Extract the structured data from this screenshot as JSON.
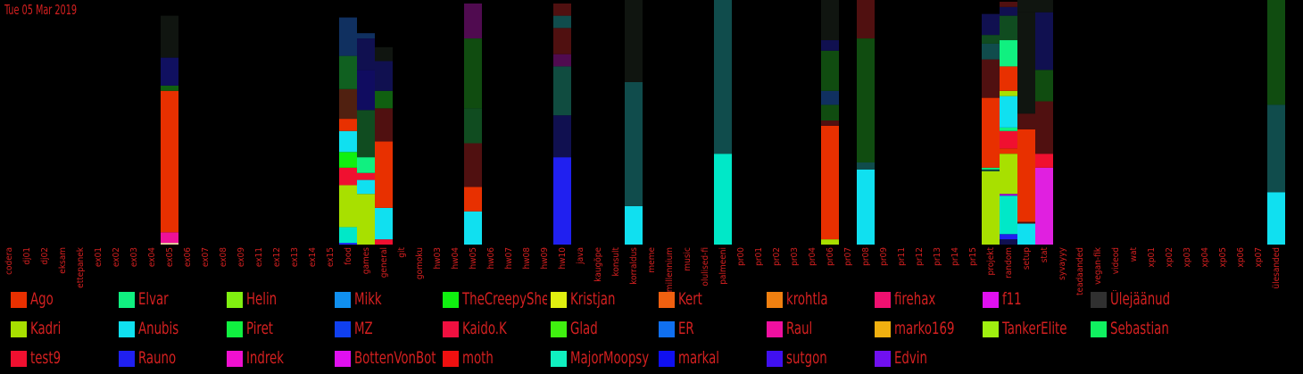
{
  "date": "Tue 05 Mar 2019",
  "chart_data": {
    "type": "bar",
    "stacked": true,
    "categories": [
      "codera",
      "dj01",
      "dj02",
      "eksam",
      "ettepanek",
      "ex01",
      "ex02",
      "ex03",
      "ex04",
      "ex05",
      "ex06",
      "ex07",
      "ex08",
      "ex09",
      "ex11",
      "ex12",
      "ex13",
      "ex14",
      "ex15",
      "food",
      "games",
      "general",
      "git",
      "gomoku",
      "hw03",
      "hw04",
      "hw05",
      "hw06",
      "hw07",
      "hw08",
      "hw09",
      "hw10",
      "java",
      "kaugõpe",
      "konsult",
      "korraldus",
      "meme",
      "millennium",
      "music",
      "olulised-fi",
      "palmeeni",
      "pr00",
      "pr01",
      "pr02",
      "pr03",
      "pr04",
      "pr06",
      "pr07",
      "pr08",
      "pr09",
      "pr11",
      "pr12",
      "pr13",
      "pr14",
      "pr15",
      "projekt",
      "random",
      "setup",
      "stat",
      "syvayyy",
      "teadaanded",
      "vegan-fik",
      "videod",
      "wat",
      "xp01",
      "xp02",
      "xp03",
      "xp04",
      "xp05",
      "xp06",
      "xp07",
      "ülesanded"
    ],
    "bars": {
      "ex05": [
        [
          "#e8d0a0",
          1
        ],
        [
          "#ee1199",
          6
        ],
        [
          "#e83000",
          81
        ],
        [
          "#106010",
          3
        ],
        [
          "#101060",
          16
        ],
        [
          "#101510",
          24
        ]
      ],
      "food": [
        [
          "#2030ff",
          1
        ],
        [
          "#00e8c8",
          9
        ],
        [
          "#a8e000",
          24
        ],
        [
          "#f01030",
          10
        ],
        [
          "#10f010",
          9
        ],
        [
          "#10e0f0",
          12
        ],
        [
          "#e83000",
          7
        ],
        [
          "#502010",
          17
        ],
        [
          "#106020",
          19
        ],
        [
          "#103060",
          22
        ]
      ],
      "games": [
        [
          "#a8e000",
          29
        ],
        [
          "#10e0f0",
          8
        ],
        [
          "#f01030",
          4
        ],
        [
          "#10f080",
          9
        ],
        [
          "#104c20",
          27
        ],
        [
          "#100c60",
          23
        ],
        [
          "#101050",
          18
        ],
        [
          "#103060",
          3
        ]
      ],
      "general": [
        [
          "#f01030",
          3
        ],
        [
          "#10e0f0",
          18
        ],
        [
          "#e83000",
          38
        ],
        [
          "#501010",
          19
        ],
        [
          "#106010",
          10
        ],
        [
          "#101050",
          17
        ],
        [
          "#101510",
          8
        ]
      ],
      "hw05": [
        [
          "#10e0f0",
          19
        ],
        [
          "#e83000",
          14
        ],
        [
          "#501010",
          25
        ],
        [
          "#104c20",
          20
        ],
        [
          "#104c10",
          40
        ],
        [
          "#500b50",
          20
        ]
      ],
      "hw10": [
        [
          "#2020f0",
          50
        ],
        [
          "#101050",
          24
        ],
        [
          "#104c40",
          28
        ],
        [
          "#500b50",
          7
        ],
        [
          "#501010",
          15
        ],
        [
          "#104c4c",
          7
        ],
        [
          "#501010",
          7
        ]
      ],
      "korraldus": [
        [
          "#10e0f0",
          22
        ],
        [
          "#104c4c",
          71
        ],
        [
          "#101510",
          47
        ]
      ],
      "palmeeni": [
        [
          "#00e8c8",
          52
        ],
        [
          "#104c4c",
          88
        ]
      ],
      "pr06": [
        [
          "#a8e000",
          3
        ],
        [
          "#e83000",
          65
        ],
        [
          "#501010",
          3
        ],
        [
          "#104c10",
          9
        ],
        [
          "#103060",
          8
        ],
        [
          "#104c10",
          23
        ],
        [
          "#101050",
          6
        ],
        [
          "#101510",
          28
        ]
      ],
      "pr08": [
        [
          "#10e0f0",
          43
        ],
        [
          "#104c4c",
          4
        ],
        [
          "#104c10",
          71
        ],
        [
          "#501010",
          22
        ]
      ],
      "random": [
        [
          "#101050",
          3
        ],
        [
          "#2020f0",
          3
        ],
        [
          "#00e8c8",
          22
        ],
        [
          "#a000e0",
          1
        ],
        [
          "#a8e000",
          23
        ],
        [
          "#e83000",
          3
        ],
        [
          "#f01030",
          10
        ],
        [
          "#10f080",
          2
        ],
        [
          "#10e0f0",
          18
        ],
        [
          "#a8e000",
          3
        ],
        [
          "#e83000",
          14
        ],
        [
          "#10f080",
          15
        ],
        [
          "#104c20",
          14
        ],
        [
          "#101050",
          5
        ],
        [
          "#501010",
          3
        ]
      ],
      "projekt": [
        [
          "#a8e000",
          42
        ],
        [
          "#104c40",
          1
        ],
        [
          "#10f080",
          1
        ],
        [
          "#e83000",
          40
        ],
        [
          "#501010",
          22
        ],
        [
          "#104c4c",
          9
        ],
        [
          "#104c20",
          5
        ],
        [
          "#101050",
          8
        ],
        [
          "#101050",
          4
        ]
      ],
      "setup": [
        [
          "#10e0f0",
          12
        ],
        [
          "#501010",
          1
        ],
        [
          "#e83000",
          53
        ],
        [
          "#501010",
          9
        ],
        [
          "#101510",
          58
        ],
        [
          "#101510",
          7
        ]
      ],
      "stat": [
        [
          "#e020e0",
          44
        ],
        [
          "#f01030",
          8
        ],
        [
          "#501010",
          30
        ],
        [
          "#104c10",
          18
        ],
        [
          "#101050",
          33
        ],
        [
          "#101510",
          7
        ]
      ],
      "ülesanded": [
        [
          "#10e0f0",
          30
        ],
        [
          "#104c4c",
          50
        ],
        [
          "#104c10",
          60
        ]
      ]
    },
    "ymax": 140,
    "legend": [
      {
        "name": "Ago",
        "color": "#e83000"
      },
      {
        "name": "Elvar",
        "color": "#10f080"
      },
      {
        "name": "Helin",
        "color": "#80f010"
      },
      {
        "name": "Mikk",
        "color": "#1090f0"
      },
      {
        "name": "TheCreepySheep",
        "color": "#10f010"
      },
      {
        "name": "Kristjan",
        "color": "#e0f010"
      },
      {
        "name": "Kert",
        "color": "#f06010"
      },
      {
        "name": "krohtla",
        "color": "#f08010"
      },
      {
        "name": "firehax",
        "color": "#f01070"
      },
      {
        "name": "f11",
        "color": "#e010f0"
      },
      {
        "name": "Ülejäänud",
        "color": "#303030"
      },
      {
        "name": "Kadri",
        "color": "#a8e000"
      },
      {
        "name": "Anubis",
        "color": "#10e0f0"
      },
      {
        "name": "Piret",
        "color": "#10f040"
      },
      {
        "name": "MZ",
        "color": "#1040f0"
      },
      {
        "name": "Kaido.K",
        "color": "#f01040"
      },
      {
        "name": "Glad",
        "color": "#40f010"
      },
      {
        "name": "ER",
        "color": "#1070f0"
      },
      {
        "name": "Raul",
        "color": "#f010a0"
      },
      {
        "name": "marko169",
        "color": "#f0b010"
      },
      {
        "name": "TankerElite",
        "color": "#a0f010"
      },
      {
        "name": "Sebastian",
        "color": "#10f060"
      },
      {
        "name": "test9",
        "color": "#f01030"
      },
      {
        "name": "Rauno",
        "color": "#2020f0"
      },
      {
        "name": "Indrek",
        "color": "#f010d0"
      },
      {
        "name": "BottenVonBot",
        "color": "#e010f0"
      },
      {
        "name": "moth",
        "color": "#f01010"
      },
      {
        "name": "MajorMoopsy",
        "color": "#10f0c0"
      },
      {
        "name": "markal",
        "color": "#1010f0"
      },
      {
        "name": "sutgon",
        "color": "#4010f0"
      },
      {
        "name": "Edvin",
        "color": "#7010f0"
      }
    ]
  }
}
